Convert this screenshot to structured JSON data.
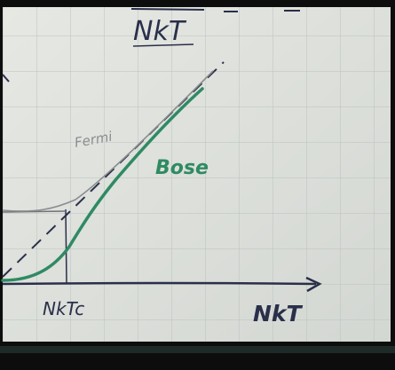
{
  "sketch": {
    "ylabel": "NkT",
    "xlabel": "NkT",
    "tick_label": "NkTc",
    "curve_fermi_label": "Fermi",
    "curve_bose_label": "Bose"
  },
  "colors": {
    "paper": "#dfe2dd",
    "grid": "#b9c3c0",
    "ink": "#2a2f4a",
    "fermi": "#8a8d8f",
    "bose": "#2f8a63",
    "frame": "#0d0d0d"
  }
}
